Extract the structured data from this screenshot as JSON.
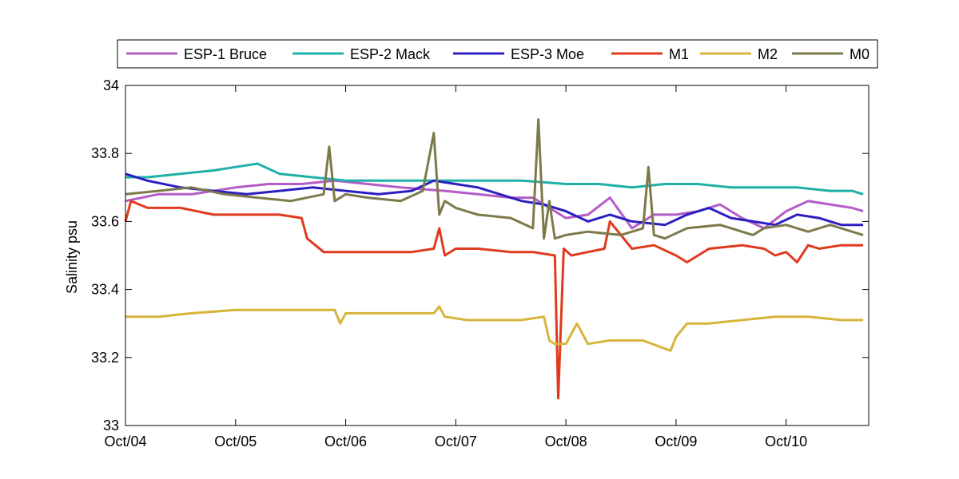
{
  "chart_data": {
    "type": "line",
    "title": "",
    "xlabel": "",
    "ylabel": "Salinity psu",
    "xlim": [
      0,
      6.75
    ],
    "ylim": [
      33,
      34
    ],
    "x_ticks": [
      0,
      1,
      2,
      3,
      4,
      5,
      6
    ],
    "x_tick_labels": [
      "Oct/04",
      "Oct/05",
      "Oct/06",
      "Oct/07",
      "Oct/08",
      "Oct/09",
      "Oct/10"
    ],
    "y_ticks": [
      33,
      33.2,
      33.4,
      33.6,
      33.8,
      34
    ],
    "y_tick_labels": [
      "33",
      "33.2",
      "33.4",
      "33.6",
      "33.8",
      "34"
    ],
    "legend_position": "top",
    "series": [
      {
        "name": "ESP-1 Bruce",
        "color": "#b45cc8",
        "x": [
          0.0,
          0.3,
          0.6,
          1.0,
          1.3,
          1.6,
          1.9,
          2.2,
          2.5,
          2.9,
          3.2,
          3.5,
          3.7,
          4.0,
          4.2,
          4.4,
          4.6,
          4.8,
          5.0,
          5.2,
          5.4,
          5.6,
          5.8,
          6.0,
          6.2,
          6.4,
          6.6,
          6.7
        ],
        "y": [
          33.66,
          33.68,
          33.68,
          33.7,
          33.71,
          33.71,
          33.72,
          33.71,
          33.7,
          33.69,
          33.68,
          33.67,
          33.67,
          33.61,
          33.62,
          33.67,
          33.58,
          33.62,
          33.62,
          33.63,
          33.65,
          33.61,
          33.58,
          33.63,
          33.66,
          33.65,
          33.64,
          33.63
        ]
      },
      {
        "name": "ESP-2 Mack",
        "color": "#1fb0a8",
        "x": [
          0.0,
          0.2,
          0.5,
          0.8,
          1.0,
          1.2,
          1.4,
          1.7,
          2.0,
          2.3,
          2.6,
          3.0,
          3.3,
          3.6,
          4.0,
          4.3,
          4.6,
          4.9,
          5.2,
          5.5,
          5.8,
          6.1,
          6.4,
          6.6,
          6.7
        ],
        "y": [
          33.73,
          33.73,
          33.74,
          33.75,
          33.76,
          33.77,
          33.74,
          33.73,
          33.72,
          33.72,
          33.72,
          33.72,
          33.72,
          33.72,
          33.71,
          33.71,
          33.7,
          33.71,
          33.71,
          33.7,
          33.7,
          33.7,
          33.69,
          33.69,
          33.68
        ]
      },
      {
        "name": "ESP-3 Moe",
        "color": "#2c1fbf",
        "x": [
          0.0,
          0.2,
          0.5,
          0.8,
          1.1,
          1.4,
          1.7,
          2.0,
          2.3,
          2.6,
          2.8,
          3.0,
          3.2,
          3.4,
          3.6,
          3.8,
          4.0,
          4.2,
          4.4,
          4.6,
          4.9,
          5.1,
          5.3,
          5.5,
          5.7,
          5.9,
          6.1,
          6.3,
          6.5,
          6.7
        ],
        "y": [
          33.74,
          33.72,
          33.7,
          33.69,
          33.68,
          33.69,
          33.7,
          33.69,
          33.68,
          33.69,
          33.72,
          33.71,
          33.7,
          33.68,
          33.66,
          33.65,
          33.63,
          33.6,
          33.62,
          33.6,
          33.59,
          33.62,
          33.64,
          33.61,
          33.6,
          33.59,
          33.62,
          33.61,
          33.59,
          33.59
        ]
      },
      {
        "name": "M1",
        "color": "#e03a1e",
        "x": [
          0.0,
          0.05,
          0.2,
          0.5,
          0.8,
          1.1,
          1.4,
          1.6,
          1.65,
          1.8,
          2.0,
          2.3,
          2.6,
          2.8,
          2.85,
          2.9,
          3.0,
          3.2,
          3.5,
          3.7,
          3.9,
          3.93,
          3.98,
          4.05,
          4.2,
          4.35,
          4.4,
          4.6,
          4.8,
          5.0,
          5.1,
          5.3,
          5.6,
          5.8,
          5.9,
          6.0,
          6.1,
          6.2,
          6.3,
          6.5,
          6.7
        ],
        "y": [
          33.6,
          33.66,
          33.64,
          33.64,
          33.62,
          33.62,
          33.62,
          33.61,
          33.55,
          33.51,
          33.51,
          33.51,
          33.51,
          33.52,
          33.58,
          33.5,
          33.52,
          33.52,
          33.51,
          33.51,
          33.5,
          33.08,
          33.52,
          33.5,
          33.51,
          33.52,
          33.6,
          33.52,
          33.53,
          33.5,
          33.48,
          33.52,
          33.53,
          33.52,
          33.5,
          33.51,
          33.48,
          33.53,
          33.52,
          33.53,
          33.53
        ]
      },
      {
        "name": "M2",
        "color": "#d8b43a",
        "x": [
          0.0,
          0.3,
          0.6,
          1.0,
          1.3,
          1.6,
          1.9,
          1.95,
          2.0,
          2.2,
          2.5,
          2.8,
          2.85,
          2.9,
          3.1,
          3.3,
          3.6,
          3.8,
          3.85,
          3.9,
          4.0,
          4.1,
          4.2,
          4.4,
          4.7,
          4.95,
          5.0,
          5.1,
          5.3,
          5.6,
          5.9,
          6.2,
          6.5,
          6.7
        ],
        "y": [
          33.32,
          33.32,
          33.33,
          33.34,
          33.34,
          33.34,
          33.34,
          33.3,
          33.33,
          33.33,
          33.33,
          33.33,
          33.35,
          33.32,
          33.31,
          33.31,
          33.31,
          33.32,
          33.25,
          33.24,
          33.24,
          33.3,
          33.24,
          33.25,
          33.25,
          33.22,
          33.26,
          33.3,
          33.3,
          33.31,
          33.32,
          33.32,
          33.31,
          33.31
        ]
      },
      {
        "name": "M0",
        "color": "#7d7a4a",
        "x": [
          0.0,
          0.3,
          0.6,
          0.9,
          1.2,
          1.5,
          1.8,
          1.85,
          1.9,
          2.0,
          2.2,
          2.5,
          2.7,
          2.8,
          2.85,
          2.9,
          3.0,
          3.2,
          3.5,
          3.7,
          3.75,
          3.8,
          3.85,
          3.9,
          4.0,
          4.2,
          4.5,
          4.7,
          4.75,
          4.8,
          4.9,
          5.1,
          5.4,
          5.7,
          5.8,
          6.0,
          6.2,
          6.4,
          6.6,
          6.7
        ],
        "y": [
          33.68,
          33.69,
          33.7,
          33.68,
          33.67,
          33.66,
          33.68,
          33.82,
          33.66,
          33.68,
          33.67,
          33.66,
          33.69,
          33.86,
          33.62,
          33.66,
          33.64,
          33.62,
          33.61,
          33.58,
          33.9,
          33.55,
          33.66,
          33.55,
          33.56,
          33.57,
          33.56,
          33.58,
          33.76,
          33.56,
          33.55,
          33.58,
          33.59,
          33.56,
          33.58,
          33.59,
          33.57,
          33.59,
          33.57,
          33.56
        ]
      }
    ]
  }
}
